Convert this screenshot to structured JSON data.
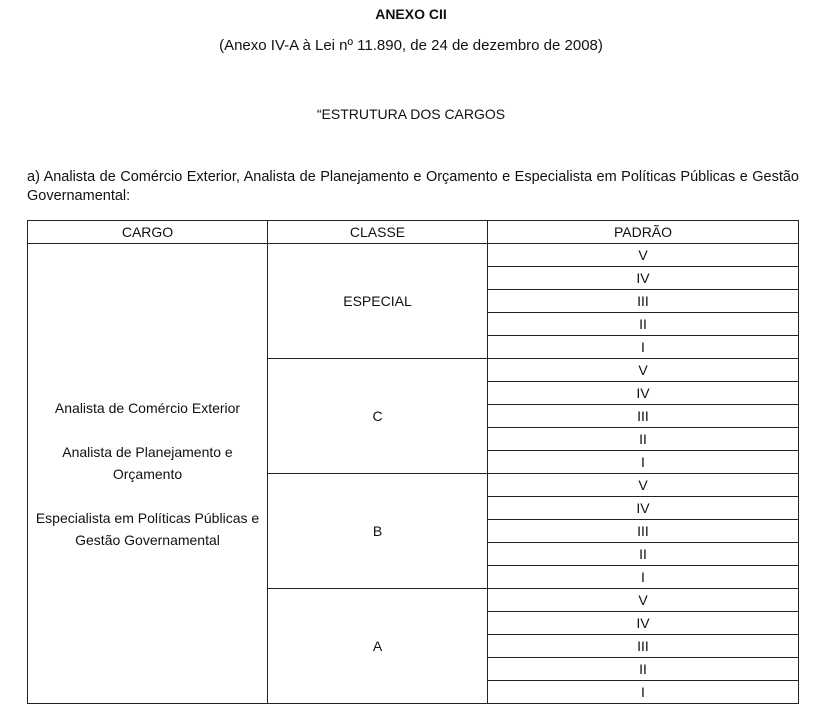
{
  "title": "ANEXO CII",
  "subtitle": "(Anexo IV-A à Lei nº 11.890, de 24 de dezembro de 2008)",
  "section_heading": "“ESTRUTURA DOS CARGOS",
  "paragraph": "a) Analista de Comércio Exterior, Analista de Planejamento e Orçamento e Especialista em Políticas Públicas e Gestão Governamental:",
  "table": {
    "headers": [
      "CARGO",
      "CLASSE",
      "PADRÃO"
    ],
    "cargos": [
      "Analista de Comércio Exterior",
      "Analista de Planejamento e Orçamento",
      "Especialista em Políticas Públicas e Gestão Governamental"
    ],
    "classes": [
      "ESPECIAL",
      "C",
      "B",
      "A"
    ],
    "padroes": [
      "V",
      "IV",
      "III",
      "II",
      "I"
    ]
  }
}
